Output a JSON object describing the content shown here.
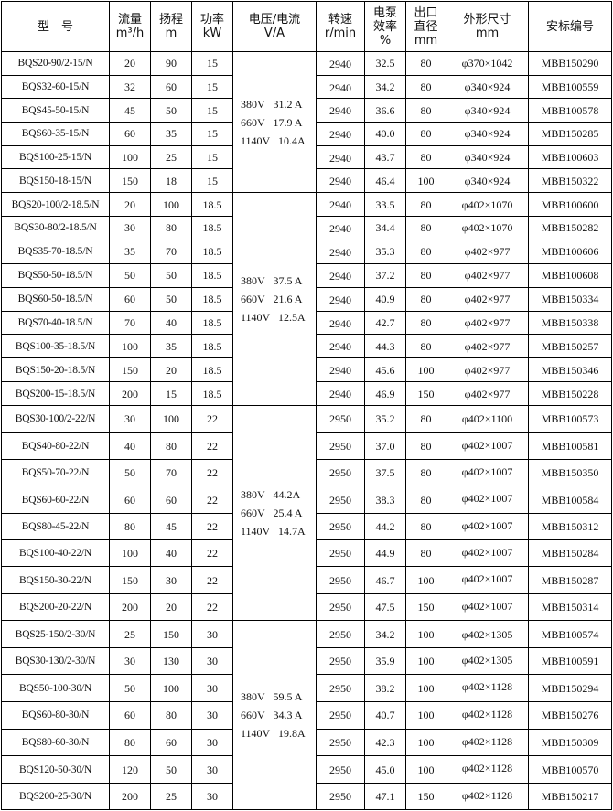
{
  "headers": [
    {
      "lines": [
        "型　号"
      ]
    },
    {
      "lines": [
        "流量",
        "m³/h"
      ]
    },
    {
      "lines": [
        "扬程",
        "m"
      ]
    },
    {
      "lines": [
        "功率",
        "kW"
      ]
    },
    {
      "lines": [
        "电压/电流",
        "V/A"
      ]
    },
    {
      "lines": [
        "转速",
        "r/min"
      ]
    },
    {
      "lines": [
        "电泵",
        "效率",
        "%"
      ]
    },
    {
      "lines": [
        "出口",
        "直径",
        "mm"
      ]
    },
    {
      "lines": [
        "外形尺寸",
        "mm"
      ]
    },
    {
      "lines": [
        "安标编号"
      ]
    }
  ],
  "groups": [
    {
      "voltage": [
        "380V   31.2 A",
        "660V   17.9 A",
        "1140V   10.4A"
      ],
      "rows": [
        [
          "BQS20-90/2-15/N",
          "20",
          "90",
          "15",
          "2940",
          "32.5",
          "80",
          "φ370×1042",
          "MBB150290"
        ],
        [
          "BQS32-60-15/N",
          "32",
          "60",
          "15",
          "2940",
          "34.2",
          "80",
          "φ340×924",
          "MBB100559"
        ],
        [
          "BQS45-50-15/N",
          "45",
          "50",
          "15",
          "2940",
          "36.6",
          "80",
          "φ340×924",
          "MBB100578"
        ],
        [
          "BQS60-35-15/N",
          "60",
          "35",
          "15",
          "2940",
          "40.0",
          "80",
          "φ340×924",
          "MBB150285"
        ],
        [
          "BQS100-25-15/N",
          "100",
          "25",
          "15",
          "2940",
          "43.7",
          "80",
          "φ340×924",
          "MBB100603"
        ],
        [
          "BQS150-18-15/N",
          "150",
          "18",
          "15",
          "2940",
          "46.4",
          "100",
          "φ340×924",
          "MBB150322"
        ]
      ]
    },
    {
      "voltage": [
        "380V   37.5 A",
        "660V   21.6 A",
        "1140V   12.5A"
      ],
      "rows": [
        [
          "BQS20-100/2-18.5/N",
          "20",
          "100",
          "18.5",
          "2940",
          "33.5",
          "80",
          "φ402×1070",
          "MBB100600"
        ],
        [
          "BQS30-80/2-18.5/N",
          "30",
          "80",
          "18.5",
          "2940",
          "34.4",
          "80",
          "φ402×1070",
          "MBB150282"
        ],
        [
          "BQS35-70-18.5/N",
          "35",
          "70",
          "18.5",
          "2940",
          "35.3",
          "80",
          "φ402×977",
          "MBB100606"
        ],
        [
          "BQS50-50-18.5/N",
          "50",
          "50",
          "18.5",
          "2940",
          "37.2",
          "80",
          "φ402×977",
          "MBB100608"
        ],
        [
          "BQS60-50-18.5/N",
          "60",
          "50",
          "18.5",
          "2940",
          "40.9",
          "80",
          "φ402×977",
          "MBB150334"
        ],
        [
          "BQS70-40-18.5/N",
          "70",
          "40",
          "18.5",
          "2940",
          "42.7",
          "80",
          "φ402×977",
          "MBB150338"
        ],
        [
          "BQS100-35-18.5/N",
          "100",
          "35",
          "18.5",
          "2940",
          "44.3",
          "80",
          "φ402×977",
          "MBB150257"
        ],
        [
          "BQS150-20-18.5/N",
          "150",
          "20",
          "18.5",
          "2940",
          "45.6",
          "100",
          "φ402×977",
          "MBB150346"
        ],
        [
          "BQS200-15-18.5/N",
          "200",
          "15",
          "18.5",
          "2940",
          "46.9",
          "150",
          "φ402×977",
          "MBB150228"
        ]
      ]
    },
    {
      "voltage": [
        "380V   44.2A",
        "660V   25.4 A",
        "1140V   14.7A"
      ],
      "rows": [
        [
          "BQS30-100/2-22/N",
          "30",
          "100",
          "22",
          "2950",
          "35.2",
          "80",
          "φ402×1100",
          "MBB100573"
        ],
        [
          "BQS40-80-22/N",
          "40",
          "80",
          "22",
          "2950",
          "37.0",
          "80",
          "φ402×1007",
          "MBB100581"
        ],
        [
          "BQS50-70-22/N",
          "50",
          "70",
          "22",
          "2950",
          "37.5",
          "80",
          "φ402×1007",
          "MBB150350"
        ],
        [
          "BQS60-60-22/N",
          "60",
          "60",
          "22",
          "2950",
          "38.3",
          "80",
          "φ402×1007",
          "MBB100584"
        ],
        [
          "BQS80-45-22/N",
          "80",
          "45",
          "22",
          "2950",
          "44.2",
          "80",
          "φ402×1007",
          "MBB150312"
        ],
        [
          "BQS100-40-22/N",
          "100",
          "40",
          "22",
          "2950",
          "44.9",
          "80",
          "φ402×1007",
          "MBB150284"
        ],
        [
          "BQS150-30-22/N",
          "150",
          "30",
          "22",
          "2950",
          "46.7",
          "100",
          "φ402×1007",
          "MBB150287"
        ],
        [
          "BQS200-20-22/N",
          "200",
          "20",
          "22",
          "2950",
          "47.5",
          "150",
          "φ402×1007",
          "MBB150314"
        ]
      ]
    },
    {
      "voltage": [
        "380V   59.5 A",
        "660V   34.3 A",
        "1140V   19.8A"
      ],
      "rows": [
        [
          "BQS25-150/2-30/N",
          "25",
          "150",
          "30",
          "2950",
          "34.2",
          "100",
          "φ402×1305",
          "MBB100574"
        ],
        [
          "BQS30-130/2-30/N",
          "30",
          "130",
          "30",
          "2950",
          "35.9",
          "100",
          "φ402×1305",
          "MBB100591"
        ],
        [
          "BQS50-100-30/N",
          "50",
          "100",
          "30",
          "2950",
          "38.2",
          "100",
          "φ402×1128",
          "MBB150294"
        ],
        [
          "BQS60-80-30/N",
          "60",
          "80",
          "30",
          "2950",
          "40.7",
          "100",
          "φ402×1128",
          "MBB150276"
        ],
        [
          "BQS80-60-30/N",
          "80",
          "60",
          "30",
          "2950",
          "42.3",
          "100",
          "φ402×1128",
          "MBB150309"
        ],
        [
          "BQS120-50-30/N",
          "120",
          "50",
          "30",
          "2950",
          "45.0",
          "100",
          "φ402×1128",
          "MBB100570"
        ],
        [
          "BQS200-25-30/N",
          "200",
          "25",
          "30",
          "2950",
          "47.1",
          "150",
          "φ402×1128",
          "MBB150217"
        ]
      ]
    }
  ]
}
